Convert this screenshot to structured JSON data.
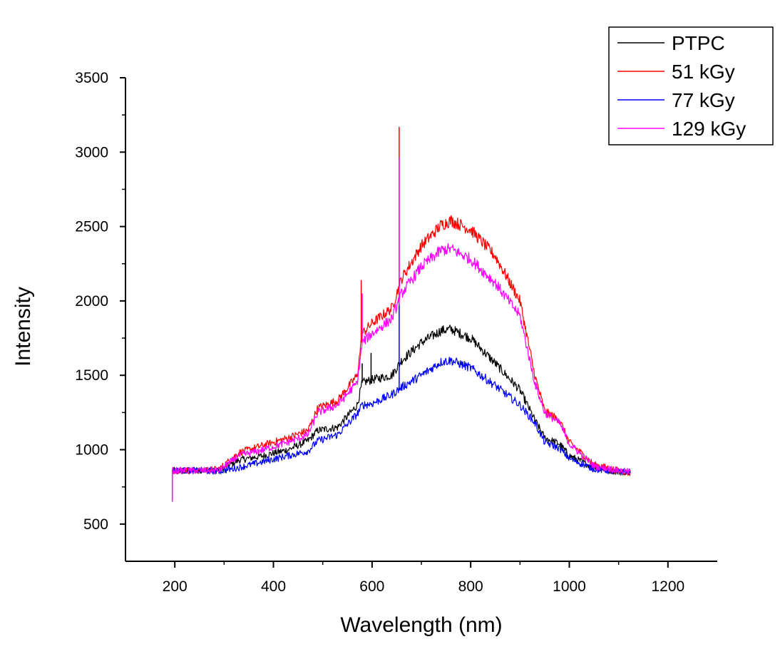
{
  "chart_data": {
    "type": "line",
    "xlabel": "Wavelength (nm)",
    "ylabel": "Intensity",
    "xlim": [
      100,
      1300
    ],
    "ylim": [
      250,
      3500
    ],
    "xticks": [
      200,
      400,
      600,
      800,
      1000,
      1200
    ],
    "yticks": [
      500,
      1000,
      1500,
      2000,
      2500,
      3000,
      3500
    ],
    "grid": false,
    "legend_position": "top-right",
    "series": [
      {
        "name": "PTPC",
        "color": "#000000",
        "x": [
          195,
          250,
          290,
          330,
          380,
          430,
          470,
          490,
          530,
          570,
          580,
          600,
          640,
          660,
          700,
          740,
          760,
          800,
          850,
          900,
          930,
          950,
          980,
          1000,
          1050,
          1100,
          1125
        ],
        "y": [
          860,
          860,
          860,
          930,
          960,
          1000,
          1060,
          1130,
          1150,
          1300,
          1450,
          1470,
          1500,
          1600,
          1720,
          1800,
          1810,
          1750,
          1580,
          1400,
          1200,
          1080,
          1040,
          960,
          880,
          850,
          850
        ],
        "spikes": [
          {
            "x": 580,
            "y": 1580
          },
          {
            "x": 598,
            "y": 1650
          }
        ]
      },
      {
        "name": "51 kGy",
        "color": "#ff0000",
        "x": [
          195,
          250,
          290,
          330,
          380,
          430,
          470,
          490,
          530,
          570,
          580,
          600,
          640,
          660,
          700,
          740,
          760,
          800,
          850,
          900,
          930,
          950,
          980,
          1000,
          1050,
          1100,
          1125
        ],
        "y": [
          860,
          860,
          870,
          980,
          1030,
          1080,
          1130,
          1280,
          1330,
          1500,
          1780,
          1850,
          1950,
          2150,
          2370,
          2510,
          2540,
          2480,
          2300,
          2000,
          1500,
          1260,
          1200,
          1050,
          900,
          860,
          840
        ],
        "spikes": [
          {
            "x": 578,
            "y": 2140
          },
          {
            "x": 655,
            "y": 3170
          }
        ]
      },
      {
        "name": "77 kGy",
        "color": "#0000ff",
        "x": [
          195,
          250,
          290,
          330,
          380,
          430,
          470,
          490,
          530,
          570,
          580,
          600,
          640,
          660,
          700,
          740,
          760,
          800,
          850,
          900,
          930,
          950,
          980,
          1000,
          1050,
          1100,
          1125
        ],
        "y": [
          860,
          860,
          855,
          880,
          920,
          960,
          990,
          1060,
          1100,
          1240,
          1300,
          1310,
          1370,
          1420,
          1500,
          1590,
          1600,
          1550,
          1430,
          1300,
          1180,
          1050,
          1010,
          940,
          870,
          850,
          850
        ],
        "spikes": [
          {
            "x": 655,
            "y": 1980
          }
        ]
      },
      {
        "name": "129 kGy",
        "color": "#ff00ff",
        "x": [
          195,
          250,
          290,
          330,
          380,
          430,
          470,
          490,
          530,
          570,
          580,
          600,
          640,
          660,
          700,
          740,
          760,
          800,
          850,
          900,
          930,
          950,
          980,
          1000,
          1050,
          1100,
          1125
        ],
        "y": [
          860,
          860,
          860,
          960,
          1000,
          1050,
          1100,
          1250,
          1300,
          1450,
          1720,
          1780,
          1880,
          2050,
          2230,
          2340,
          2350,
          2280,
          2120,
          1900,
          1450,
          1250,
          1180,
          1040,
          890,
          860,
          850
        ],
        "spikes": [
          {
            "x": 195,
            "y": 650
          },
          {
            "x": 580,
            "y": 2050
          },
          {
            "x": 655,
            "y": 2960
          }
        ]
      }
    ]
  }
}
